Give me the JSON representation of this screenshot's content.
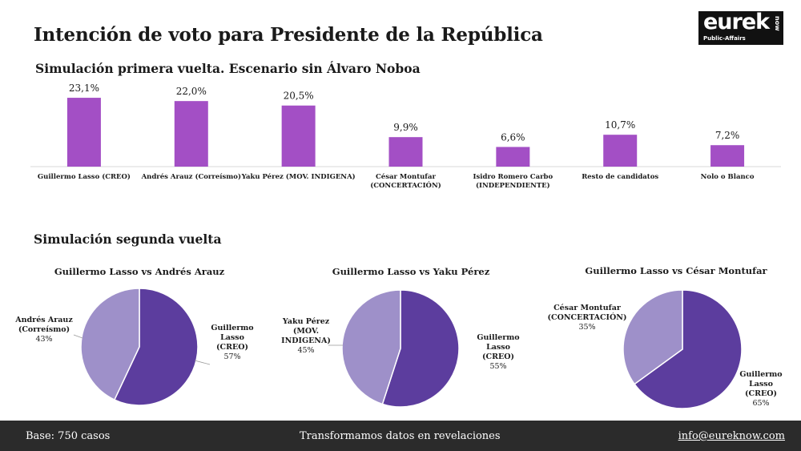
{
  "header": {
    "title": "Intención de voto para Presidente de la República",
    "subtitle": "Simulación primera vuelta. Escenario sin Álvaro Noboa",
    "section2": "Simulación segunda vuelta"
  },
  "logo": {
    "word": "eurek",
    "side": "now",
    "sub": "Public-Affairs"
  },
  "colors": {
    "bar": "#a34fc5",
    "pie_dark": "#5c3d9e",
    "pie_light": "#9e90c9",
    "footer_bg": "#2b2b2b"
  },
  "chart_data": [
    {
      "type": "bar",
      "title": "Simulación primera vuelta. Escenario sin Álvaro Noboa",
      "categories": [
        [
          "Guillermo Lasso (CREO)"
        ],
        [
          "Andrés Arauz (Correísmo)"
        ],
        [
          "Yaku Pérez (MOV. INDIGENA)"
        ],
        [
          "César Montufar",
          "(CONCERTACIÓN)"
        ],
        [
          "Isidro Romero Carbo",
          "(INDEPENDIENTE)"
        ],
        [
          "Resto de candidatos"
        ],
        [
          "Nolo o Blanco"
        ]
      ],
      "values": [
        23.1,
        22.0,
        20.5,
        9.9,
        6.6,
        10.7,
        7.2
      ],
      "value_labels": [
        "23,1%",
        "22,0%",
        "20,5%",
        "9,9%",
        "6,6%",
        "10,7%",
        "7,2%"
      ],
      "ylim": [
        0,
        25
      ],
      "grid": false
    },
    {
      "type": "pie",
      "title": "Guillermo Lasso vs Andrés Arauz",
      "slices": [
        {
          "label": [
            "Guillermo",
            "Lasso",
            "(CREO)",
            "57%"
          ],
          "value": 57,
          "color": "#5c3d9e"
        },
        {
          "label": [
            "Andrés Arauz",
            "(Correísmo)",
            "43%"
          ],
          "value": 43,
          "color": "#9e90c9"
        }
      ]
    },
    {
      "type": "pie",
      "title": "Guillermo Lasso vs Yaku Pérez",
      "slices": [
        {
          "label": [
            "Guillermo",
            "Lasso",
            "(CREO)",
            "55%"
          ],
          "value": 55,
          "color": "#5c3d9e"
        },
        {
          "label": [
            "Yaku Pérez",
            "(MOV.",
            "INDIGENA)",
            "45%"
          ],
          "value": 45,
          "color": "#9e90c9"
        }
      ]
    },
    {
      "type": "pie",
      "title": "Guillermo Lasso vs César Montufar",
      "slices": [
        {
          "label": [
            "Guillermo",
            "Lasso",
            "(CREO)",
            "65%"
          ],
          "value": 65,
          "color": "#5c3d9e"
        },
        {
          "label": [
            "César Montufar",
            "(CONCERTACIÓN)",
            "35%"
          ],
          "value": 35,
          "color": "#9e90c9"
        }
      ]
    }
  ],
  "footer": {
    "base": "Base: 750 casos",
    "tagline": "Transformamos datos en revelaciones",
    "email": "info@eureknow.com"
  }
}
